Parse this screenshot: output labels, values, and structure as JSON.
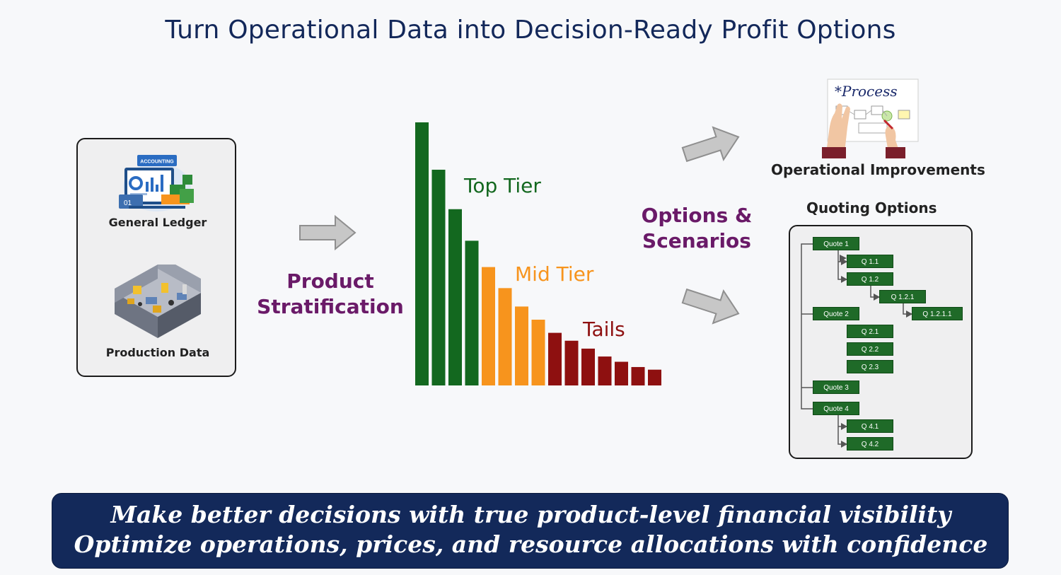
{
  "title": "Turn Operational Data into Decision-Ready Profit Options",
  "sources": {
    "general_ledger": {
      "label": "General Ledger",
      "icon": "accounting-dashboard-icon",
      "icon_text": "ACCOUNTING"
    },
    "production_data": {
      "label": "Production Data",
      "icon": "factory-floor-icon"
    }
  },
  "stratification": {
    "line1": "Product",
    "line2": "Stratification"
  },
  "chart_data": {
    "type": "bar",
    "values": [
      100,
      82,
      67,
      55,
      45,
      37,
      30,
      25,
      20,
      17,
      14,
      11,
      9,
      7,
      6
    ],
    "tiers": [
      {
        "name": "Top Tier",
        "count": 4,
        "color": "#13681f"
      },
      {
        "name": "Mid Tier",
        "count": 4,
        "color": "#f7941d"
      },
      {
        "name": "Tails",
        "count": 7,
        "color": "#8e1010"
      }
    ],
    "xlabel": "",
    "ylabel": ""
  },
  "scenarios": {
    "line1": "Options &",
    "line2": "Scenarios"
  },
  "operational": {
    "label": "Operational Improvements",
    "sketch_text": "*Process",
    "icon": "process-whiteboard-icon"
  },
  "quoting": {
    "title": "Quoting Options",
    "nodes": [
      "Quote 1",
      "Q 1.1",
      "Q 1.2",
      "Q 1.2.1",
      "Q 1.2.1.1",
      "Quote 2",
      "Q 2.1",
      "Q 2.2",
      "Q 2.3",
      "Quote 3",
      "Quote 4",
      "Q 4.1",
      "Q 4.2"
    ]
  },
  "banner": {
    "line1": "Make better decisions with true product-level financial visibility",
    "line2": "Optimize operations, prices, and resource allocations with confidence"
  },
  "colors": {
    "navy": "#13295a",
    "purple": "#6a1a68",
    "green": "#13681f",
    "orange": "#f7941d",
    "red": "#8e1010"
  }
}
